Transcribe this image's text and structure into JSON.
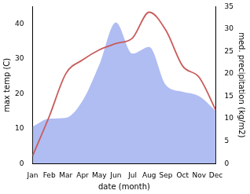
{
  "chart_data": {
    "type": "line",
    "x_label": "date (month)",
    "y_label": "max temp (C)",
    "y2_label": "med. precipitation (kg/m2)",
    "categories": [
      "Jan",
      "Feb",
      "Mar",
      "Apr",
      "May",
      "Jun",
      "Jul",
      "Aug",
      "Sep",
      "Oct",
      "Nov",
      "Dec"
    ],
    "series": [
      {
        "name": "med. precipitation",
        "type": "area",
        "axis": "y2",
        "color": "#b0bdf2",
        "values": [
          8.2,
          10,
          10.2,
          14,
          22,
          31.5,
          24.5,
          26,
          17.5,
          16,
          15,
          11.7
        ]
      },
      {
        "name": "max temp",
        "type": "line",
        "color": "#c95b5b",
        "values": [
          2.2,
          13.5,
          25.8,
          29.7,
          32.6,
          34.4,
          36,
          43.4,
          38.2,
          28,
          24.7,
          15.3
        ]
      }
    ],
    "ylim": [
      0,
      45
    ],
    "yticks": [
      0,
      10,
      20,
      30,
      40
    ],
    "y2lim": [
      0,
      35
    ],
    "y2ticks": [
      0,
      5,
      10,
      15,
      20,
      25,
      30,
      35
    ],
    "grid": false
  }
}
